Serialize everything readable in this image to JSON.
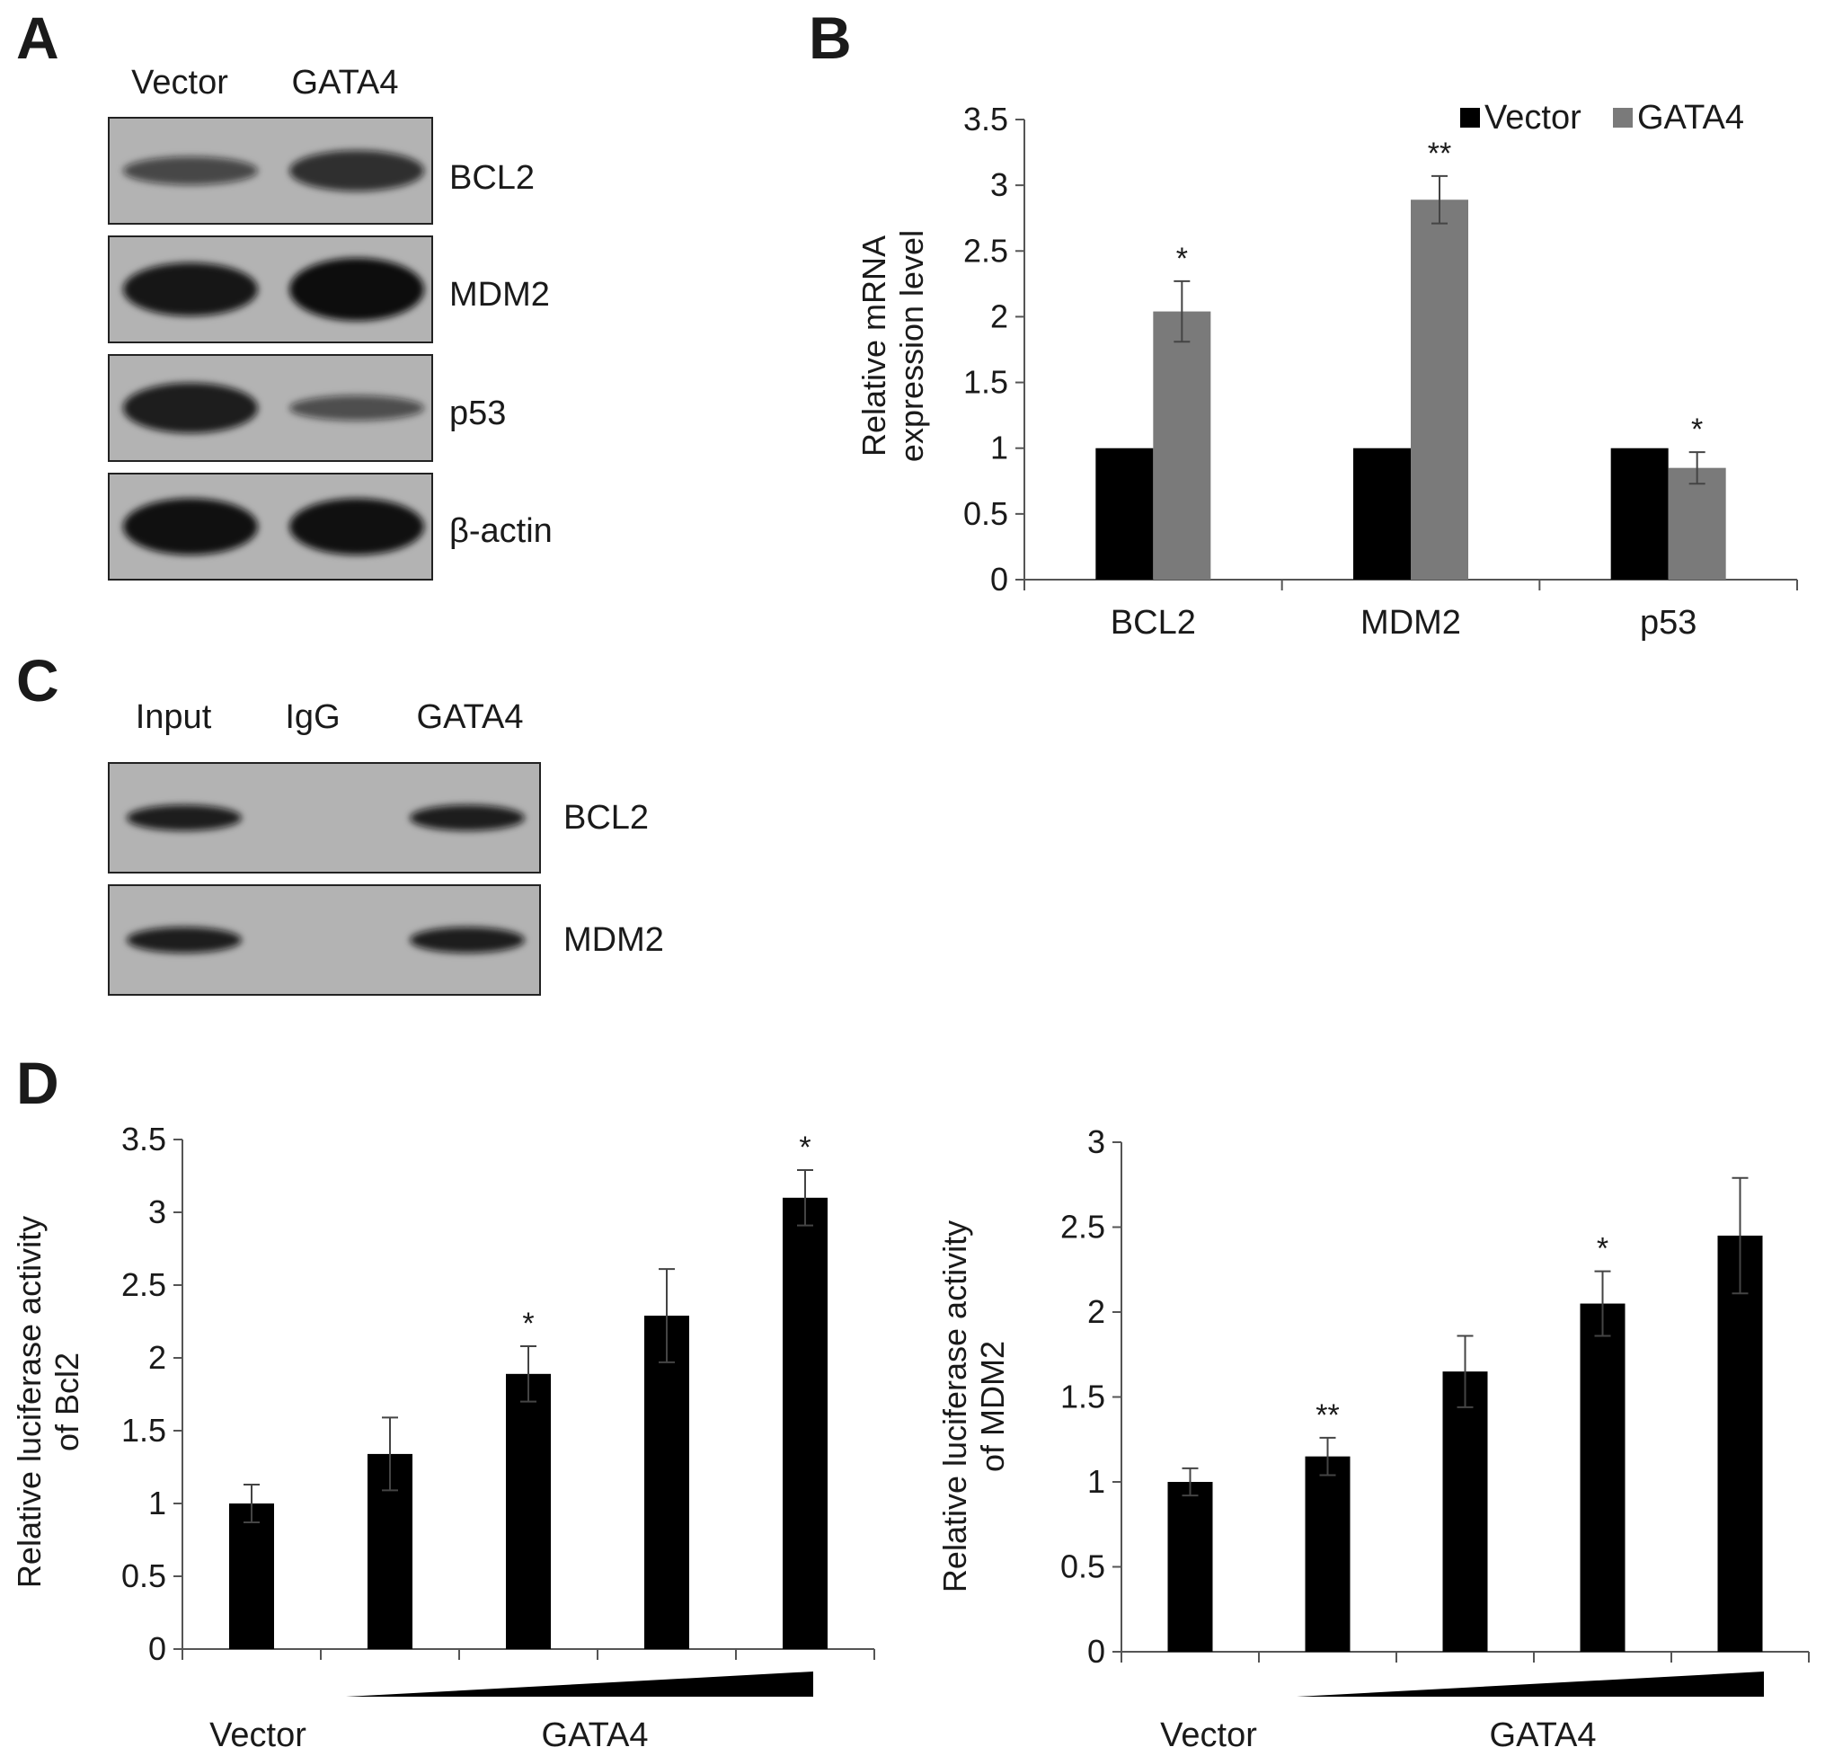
{
  "panels": {
    "A": {
      "letter": "A",
      "lanes": [
        "Vector",
        "GATA4"
      ],
      "rows": [
        "BCL2",
        "MDM2",
        "p53",
        "β-actin"
      ],
      "band_intensity": [
        [
          0.45,
          0.65
        ],
        [
          0.85,
          1.0
        ],
        [
          0.8,
          0.4
        ],
        [
          0.9,
          0.9
        ]
      ]
    },
    "B": {
      "letter": "B"
    },
    "C": {
      "letter": "C",
      "lanes": [
        "Input",
        "IgG",
        "GATA4"
      ],
      "rows": [
        "BCL2",
        "MDM2"
      ],
      "band_intensity": [
        [
          0.8,
          0.0,
          0.8
        ],
        [
          0.8,
          0.0,
          0.8
        ]
      ]
    },
    "D": {
      "letter": "D"
    }
  },
  "chart_data": [
    {
      "panel": "B",
      "type": "bar",
      "categories": [
        "BCL2",
        "MDM2",
        "p53"
      ],
      "series": [
        {
          "name": "Vector",
          "values": [
            1.0,
            1.0,
            1.0
          ],
          "errors": [
            0.0,
            0.0,
            0.0
          ],
          "color": "#000000"
        },
        {
          "name": "GATA4",
          "values": [
            2.04,
            2.89,
            0.85
          ],
          "errors": [
            0.23,
            0.18,
            0.12
          ],
          "color": "#7a7a7a"
        }
      ],
      "significance": [
        {
          "category": "BCL2",
          "series": "GATA4",
          "label": "*"
        },
        {
          "category": "MDM2",
          "series": "GATA4",
          "label": "**"
        },
        {
          "category": "p53",
          "series": "GATA4",
          "label": "*"
        }
      ],
      "ylabel_lines": [
        "Relative mRNA",
        "expression level"
      ],
      "ylim": [
        0,
        3.5
      ],
      "yticks": [
        "0",
        "0.5",
        "1",
        "1.5",
        "2",
        "2.5",
        "3",
        "3.5"
      ],
      "legend": "top-right",
      "grid": false
    },
    {
      "panel": "D-left",
      "type": "bar",
      "values": [
        1.0,
        1.34,
        1.89,
        2.29,
        3.1
      ],
      "errors": [
        0.13,
        0.25,
        0.19,
        0.32,
        0.19
      ],
      "significance": [
        "",
        "",
        "*",
        "",
        "*"
      ],
      "ylabel_lines": [
        "Relative luciferase activity",
        "of Bcl2"
      ],
      "ylim": [
        0,
        3.5
      ],
      "yticks": [
        "0",
        "0.5",
        "1",
        "1.5",
        "2",
        "2.5",
        "3",
        "3.5"
      ],
      "x_labels": {
        "vector": "Vector",
        "gata4": "GATA4"
      },
      "grid": false
    },
    {
      "panel": "D-right",
      "type": "bar",
      "values": [
        1.0,
        1.15,
        1.65,
        2.05,
        2.45
      ],
      "errors": [
        0.08,
        0.11,
        0.21,
        0.19,
        0.34
      ],
      "significance": [
        "",
        "**",
        "",
        "*",
        ""
      ],
      "ylabel_lines": [
        "Relative luciferase activity",
        "of MDM2"
      ],
      "ylim": [
        0,
        3
      ],
      "yticks": [
        "0",
        "0.5",
        "1",
        "1.5",
        "2",
        "2.5",
        "3"
      ],
      "x_labels": {
        "vector": "Vector",
        "gata4": "GATA4"
      },
      "grid": false
    }
  ]
}
